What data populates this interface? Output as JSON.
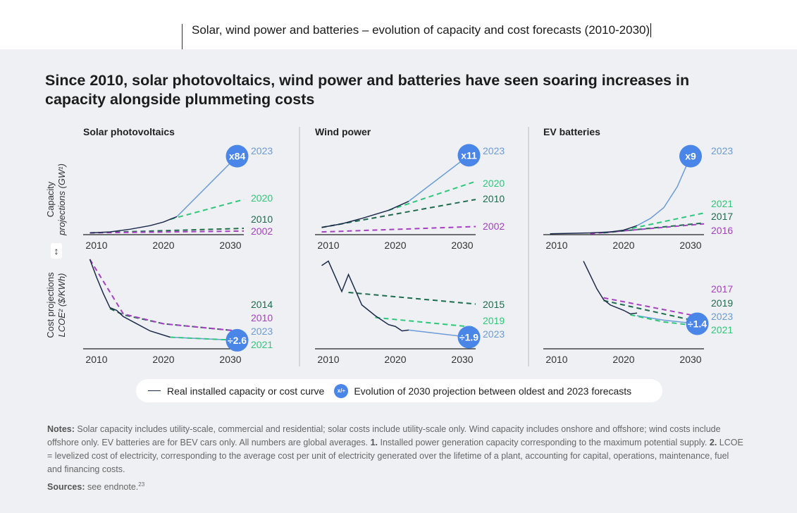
{
  "header": {
    "title": "Solar, wind power and batteries – evolution of capacity and cost forecasts (2010-2030)"
  },
  "headline": "Since 2010, solar photovoltaics, wind power and batteries have seen soaring increases in capacity alongside plummeting costs",
  "axis_labels": {
    "capacity_line1": "Capacity",
    "capacity_line2": "projections (GW¹)",
    "cost_line1": "Cost projections",
    "cost_line2": "LCOE² ($/KWh)",
    "arrow": "↕"
  },
  "colors": {
    "real": "#1c2a4a",
    "p2023": "#6b9bd8",
    "green_light": "#2fc77a",
    "green_dark": "#1f6b4c",
    "purple": "#a640c2",
    "badge": "#4a86e8"
  },
  "chart_data": [
    {
      "panel": "Solar photovoltaics",
      "type": "line",
      "xlim": [
        2008,
        2032
      ],
      "xticks": [
        2010,
        2020,
        2030
      ],
      "capacity": {
        "ylim": [
          0,
          100
        ],
        "badge": "x84",
        "series": [
          {
            "name": "2023",
            "color": "p2023",
            "dashed": false,
            "x": [
              2022,
              2031
            ],
            "y": [
              20,
              87
            ]
          },
          {
            "name": "2020",
            "color": "green_light",
            "dashed": true,
            "x": [
              2021,
              2032
            ],
            "y": [
              17,
              39
            ]
          },
          {
            "name": "2010",
            "color": "green_dark",
            "dashed": true,
            "x": [
              2009,
              2032
            ],
            "y": [
              2,
              7
            ]
          },
          {
            "name": "2002",
            "color": "purple",
            "dashed": true,
            "x": [
              2009,
              2032
            ],
            "y": [
              2,
              4
            ]
          },
          {
            "name": "",
            "color": "real",
            "dashed": false,
            "x": [
              2009,
              2012,
              2015,
              2018,
              2020,
              2021,
              2022
            ],
            "y": [
              2,
              3,
              6,
              10,
              14,
              17,
              20
            ]
          }
        ]
      },
      "cost": {
        "ylim": [
          0,
          100
        ],
        "badge": "÷2.6",
        "series": [
          {
            "name": "2014",
            "color": "green_dark",
            "dashed": true,
            "x": [
              2012,
              2014,
              2020,
              2031
            ],
            "y": [
              45,
              38,
              28,
              20
            ]
          },
          {
            "name": "2010",
            "color": "purple",
            "dashed": true,
            "x": [
              2009,
              2014,
              2020,
              2031
            ],
            "y": [
              100,
              39,
              28,
              20
            ]
          },
          {
            "name": "2023",
            "color": "p2023",
            "dashed": false,
            "x": [
              2021,
              2031
            ],
            "y": [
              13,
              9.5
            ]
          },
          {
            "name": "2021",
            "color": "green_light",
            "dashed": true,
            "x": [
              2021,
              2031
            ],
            "y": [
              13,
              9.5
            ]
          },
          {
            "name": "",
            "color": "real",
            "dashed": false,
            "x": [
              2009,
              2010,
              2011,
              2012,
              2013,
              2014,
              2016,
              2018,
              2021
            ],
            "y": [
              100,
              80,
              62,
              46,
              43,
              36,
              28,
              20,
              13
            ]
          }
        ]
      }
    },
    {
      "panel": "Wind power",
      "type": "line",
      "xlim": [
        2008,
        2032
      ],
      "xticks": [
        2010,
        2020,
        2030
      ],
      "capacity": {
        "ylim": [
          0,
          100
        ],
        "badge": "x11",
        "series": [
          {
            "name": "2023",
            "color": "p2023",
            "dashed": false,
            "x": [
              2022,
              2031
            ],
            "y": [
              37,
              88
            ]
          },
          {
            "name": "2020",
            "color": "green_light",
            "dashed": true,
            "x": [
              2019,
              2032
            ],
            "y": [
              27,
              59
            ]
          },
          {
            "name": "2010",
            "color": "green_dark",
            "dashed": true,
            "x": [
              2009,
              2032
            ],
            "y": [
              8,
              39
            ]
          },
          {
            "name": "2002",
            "color": "purple",
            "dashed": true,
            "x": [
              2009,
              2032
            ],
            "y": [
              3,
              9
            ]
          },
          {
            "name": "",
            "color": "real",
            "dashed": false,
            "x": [
              2009,
              2012,
              2015,
              2019,
              2022
            ],
            "y": [
              8,
              12,
              18,
              27,
              37
            ]
          }
        ]
      },
      "cost": {
        "ylim": [
          0,
          100
        ],
        "badge": "÷1.9",
        "series": [
          {
            "name": "2015",
            "color": "green_dark",
            "dashed": true,
            "x": [
              2013,
              2032
            ],
            "y": [
              63,
              50
            ]
          },
          {
            "name": "2019",
            "color": "green_light",
            "dashed": true,
            "x": [
              2017,
              2032
            ],
            "y": [
              35,
              24
            ]
          },
          {
            "name": "2023",
            "color": "p2023",
            "dashed": false,
            "x": [
              2022,
              2031
            ],
            "y": [
              21,
              13
            ]
          },
          {
            "name": "",
            "color": "real",
            "dashed": false,
            "x": [
              2009,
              2010,
              2012,
              2013,
              2015,
              2017,
              2018,
              2019,
              2020,
              2021,
              2022
            ],
            "y": [
              93,
              98,
              64,
              83,
              49,
              37,
              32,
              27,
              25,
              20,
              21
            ]
          }
        ]
      }
    },
    {
      "panel": "EV batteries",
      "type": "line",
      "xlim": [
        2008,
        2032
      ],
      "xticks": [
        2010,
        2020,
        2030
      ],
      "capacity": {
        "ylim": [
          0,
          100
        ],
        "badge": "x9",
        "series": [
          {
            "name": "2023",
            "color": "p2023",
            "dashed": false,
            "x": [
              2022,
              2024,
              2026,
              2028,
              2030
            ],
            "y": [
              10,
              18,
              30,
              53,
              87
            ]
          },
          {
            "name": "2021",
            "color": "green_light",
            "dashed": true,
            "x": [
              2020,
              2032
            ],
            "y": [
              5,
              24
            ]
          },
          {
            "name": "2017",
            "color": "green_dark",
            "dashed": true,
            "x": [
              2017,
              2032
            ],
            "y": [
              2,
              13
            ]
          },
          {
            "name": "2016",
            "color": "purple",
            "dashed": true,
            "x": [
              2015,
              2032
            ],
            "y": [
              1,
              12
            ]
          },
          {
            "name": "",
            "color": "real",
            "dashed": false,
            "x": [
              2009,
              2015,
              2018,
              2020,
              2022
            ],
            "y": [
              1,
              2,
              3,
              5,
              10
            ]
          }
        ]
      },
      "cost": {
        "ylim": [
          0,
          100
        ],
        "badge": "÷1.4",
        "series": [
          {
            "name": "2017",
            "color": "purple",
            "dashed": true,
            "x": [
              2017,
              2032
            ],
            "y": [
              57,
              35
            ]
          },
          {
            "name": "2019",
            "color": "green_dark",
            "dashed": true,
            "x": [
              2017,
              2032
            ],
            "y": [
              54,
              29
            ]
          },
          {
            "name": "2023",
            "color": "p2023",
            "dashed": false,
            "x": [
              2022,
              2026,
              2031
            ],
            "y": [
              37,
              32,
              28
            ]
          },
          {
            "name": "2021",
            "color": "green_light",
            "dashed": true,
            "x": [
              2021,
              2026,
              2032
            ],
            "y": [
              38,
              30,
              25
            ]
          },
          {
            "name": "",
            "color": "real",
            "dashed": false,
            "x": [
              2014,
              2016,
              2017,
              2018,
              2020,
              2021,
              2022
            ],
            "y": [
              98,
              67,
              55,
              49,
              43,
              39,
              40
            ]
          }
        ]
      }
    }
  ],
  "legend": {
    "real": "Real installed capacity or cost curve",
    "badge_icon": "x/÷",
    "projection": "Evolution of 2030 projection between oldest and 2023 forecasts"
  },
  "notes": {
    "label": "Notes:",
    "text1": " Solar capacity includes utility-scale, commercial and residential; solar costs include utility-scale only. Wind capacity includes onshore and offshore; wind costs include offshore only. EV batteries are for BEV cars only. All numbers are global averages. ",
    "n1": "1.",
    "text2": " Installed power generation capacity corresponding to the maximum potential supply. ",
    "n2": "2.",
    "text3": " LCOE = levelized cost of electricity, corresponding to the average cost per unit of electricity generated over the lifetime of a plant, accounting for capital, operations, maintenance, fuel and financing costs."
  },
  "sources": {
    "label": "Sources:",
    "text": " see endnote.",
    "sup": "23"
  }
}
